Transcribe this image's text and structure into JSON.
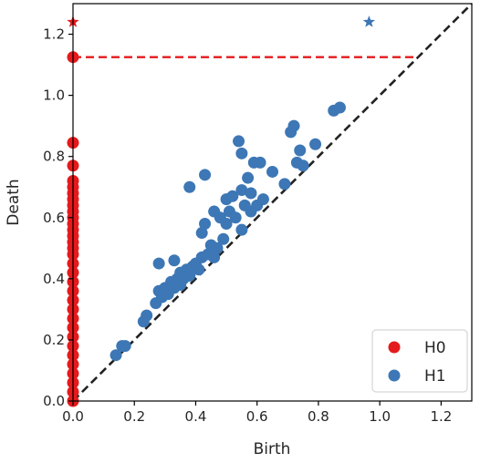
{
  "chart_data": {
    "type": "scatter",
    "title": "",
    "xlabel": "Birth",
    "ylabel": "Death",
    "xlim": [
      0.0,
      1.3
    ],
    "ylim": [
      0.0,
      1.3
    ],
    "xticks": [
      "0.0",
      "0.2",
      "0.4",
      "0.6",
      "0.8",
      "1.0",
      "1.2"
    ],
    "yticks": [
      "0.0",
      "0.2",
      "0.4",
      "0.6",
      "0.8",
      "1.0",
      "1.2"
    ],
    "grid": false,
    "legend_position": "bottom-right",
    "diagonal": {
      "from": [
        0.0,
        0.0
      ],
      "to": [
        1.3,
        1.3
      ],
      "color": "#222222",
      "style": "dashed"
    },
    "infinity_line": {
      "y": 1.125,
      "x_from": 0.0,
      "x_to": 1.125,
      "color": "#e41a1c",
      "style": "dashed"
    },
    "series": [
      {
        "name": "H0",
        "color": "#e41a1c",
        "points": [
          [
            0,
            0.0
          ],
          [
            0,
            0.03
          ],
          [
            0,
            0.06
          ],
          [
            0,
            0.09
          ],
          [
            0,
            0.12
          ],
          [
            0,
            0.15
          ],
          [
            0,
            0.18
          ],
          [
            0,
            0.21
          ],
          [
            0,
            0.24
          ],
          [
            0,
            0.27
          ],
          [
            0,
            0.3
          ],
          [
            0,
            0.33
          ],
          [
            0,
            0.36
          ],
          [
            0,
            0.39
          ],
          [
            0,
            0.42
          ],
          [
            0,
            0.45
          ],
          [
            0,
            0.48
          ],
          [
            0,
            0.5
          ],
          [
            0,
            0.52
          ],
          [
            0,
            0.54
          ],
          [
            0,
            0.56
          ],
          [
            0,
            0.58
          ],
          [
            0,
            0.6
          ],
          [
            0,
            0.62
          ],
          [
            0,
            0.64
          ],
          [
            0,
            0.66
          ],
          [
            0,
            0.68
          ],
          [
            0,
            0.7
          ],
          [
            0,
            0.72
          ],
          [
            0,
            0.77
          ],
          [
            0,
            0.845
          ],
          [
            0,
            1.125
          ]
        ],
        "infinite_points": [
          [
            0,
            1.24
          ]
        ]
      },
      {
        "name": "H1",
        "color": "#3d77b5",
        "points": [
          [
            0.14,
            0.15
          ],
          [
            0.16,
            0.18
          ],
          [
            0.17,
            0.18
          ],
          [
            0.23,
            0.26
          ],
          [
            0.24,
            0.28
          ],
          [
            0.27,
            0.32
          ],
          [
            0.28,
            0.45
          ],
          [
            0.28,
            0.36
          ],
          [
            0.29,
            0.34
          ],
          [
            0.3,
            0.37
          ],
          [
            0.31,
            0.35
          ],
          [
            0.32,
            0.39
          ],
          [
            0.33,
            0.37
          ],
          [
            0.33,
            0.46
          ],
          [
            0.34,
            0.4
          ],
          [
            0.35,
            0.38
          ],
          [
            0.35,
            0.42
          ],
          [
            0.36,
            0.4
          ],
          [
            0.37,
            0.43
          ],
          [
            0.38,
            0.41
          ],
          [
            0.39,
            0.44
          ],
          [
            0.38,
            0.7
          ],
          [
            0.4,
            0.45
          ],
          [
            0.41,
            0.43
          ],
          [
            0.42,
            0.47
          ],
          [
            0.42,
            0.55
          ],
          [
            0.43,
            0.74
          ],
          [
            0.43,
            0.58
          ],
          [
            0.44,
            0.48
          ],
          [
            0.45,
            0.51
          ],
          [
            0.46,
            0.62
          ],
          [
            0.46,
            0.47
          ],
          [
            0.47,
            0.5
          ],
          [
            0.48,
            0.6
          ],
          [
            0.49,
            0.53
          ],
          [
            0.5,
            0.66
          ],
          [
            0.5,
            0.58
          ],
          [
            0.51,
            0.62
          ],
          [
            0.52,
            0.67
          ],
          [
            0.53,
            0.6
          ],
          [
            0.54,
            0.85
          ],
          [
            0.55,
            0.81
          ],
          [
            0.55,
            0.69
          ],
          [
            0.55,
            0.56
          ],
          [
            0.56,
            0.64
          ],
          [
            0.57,
            0.73
          ],
          [
            0.58,
            0.62
          ],
          [
            0.58,
            0.68
          ],
          [
            0.59,
            0.78
          ],
          [
            0.6,
            0.64
          ],
          [
            0.61,
            0.78
          ],
          [
            0.62,
            0.66
          ],
          [
            0.65,
            0.75
          ],
          [
            0.69,
            0.71
          ],
          [
            0.71,
            0.88
          ],
          [
            0.72,
            0.9
          ],
          [
            0.73,
            0.78
          ],
          [
            0.74,
            0.82
          ],
          [
            0.75,
            0.77
          ],
          [
            0.79,
            0.84
          ],
          [
            0.85,
            0.95
          ],
          [
            0.87,
            0.96
          ]
        ],
        "infinite_points": [
          [
            0.965,
            1.24
          ]
        ]
      }
    ]
  }
}
